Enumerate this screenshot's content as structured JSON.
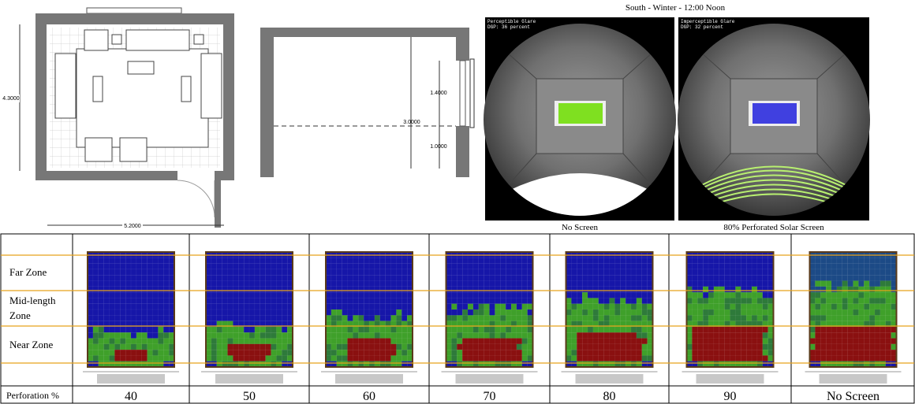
{
  "floor_plan": {
    "depth": "4.3000",
    "width": "5.2000"
  },
  "section": {
    "height": "3.0000",
    "window_height": "1.4000",
    "sill_height": "1.0000"
  },
  "renders": {
    "title": "South - Winter - 12:00 Noon",
    "views": [
      {
        "glare": "Perceptible Glare",
        "dgp": "DGP: 36 percent",
        "caption": "No Screen"
      },
      {
        "glare": "Imperceptible Glare",
        "dgp": "DGP: 32 percent",
        "caption": "80% Perforated Solar Screen"
      }
    ]
  },
  "table": {
    "zones": [
      "Far Zone",
      "Mid-length Zone",
      "Near Zone"
    ],
    "row_label": "Perforation %",
    "columns": [
      40,
      50,
      60,
      70,
      80,
      90,
      "No Screen"
    ]
  }
}
